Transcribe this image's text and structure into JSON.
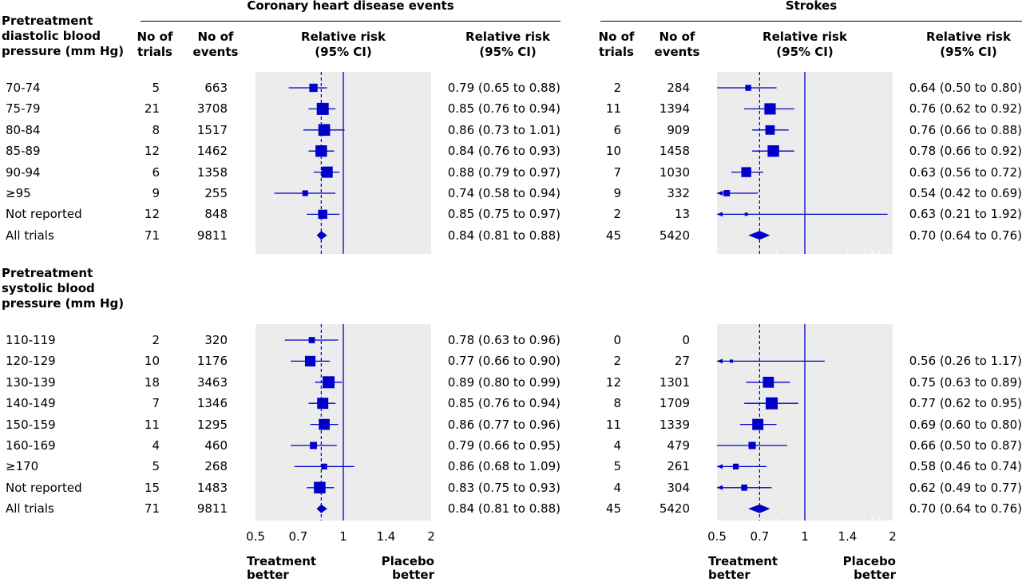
{
  "chart_data": {
    "type": "forest",
    "panel_titles": [
      "Coronary heart disease events",
      "Strokes"
    ],
    "column_headers": {
      "group": "Pretreatment diastolic blood pressure (mm Hg)",
      "n_trials": "No of trials",
      "n_events": "No of events",
      "plot": "Relative risk (95% CI)",
      "rr_text": "Relative risk (95% CI)"
    },
    "x_axis": {
      "scale": "log",
      "range": [
        0.5,
        2
      ],
      "ticks": [
        0.5,
        0.7,
        1,
        1.4,
        2
      ],
      "tick_labels": [
        "0.5",
        "0.7",
        "1",
        "1.4",
        "2"
      ],
      "left_label": "Treatment better",
      "right_label": "Placebo better"
    },
    "pooled_estimates": {
      "chd": 0.84,
      "stroke": 0.7
    },
    "sections": [
      {
        "title": "Pretreatment diastolic blood pressure (mm Hg)",
        "rows": [
          {
            "label": "70-74",
            "chd": {
              "trials": "5",
              "events": "663",
              "rr": 0.79,
              "lo": 0.65,
              "hi": 0.88,
              "text": "0.79 (0.65 to 0.88)"
            },
            "stroke": {
              "trials": "2",
              "events": "284",
              "rr": 0.64,
              "lo": 0.5,
              "hi": 0.8,
              "text": "0.64 (0.50 to 0.80)"
            }
          },
          {
            "label": "75-79",
            "chd": {
              "trials": "21",
              "events": "3708",
              "rr": 0.85,
              "lo": 0.76,
              "hi": 0.94,
              "text": "0.85 (0.76 to 0.94)"
            },
            "stroke": {
              "trials": "11",
              "events": "1394",
              "rr": 0.76,
              "lo": 0.62,
              "hi": 0.92,
              "text": "0.76 (0.62 to 0.92)"
            }
          },
          {
            "label": "80-84",
            "chd": {
              "trials": "8",
              "events": "1517",
              "rr": 0.86,
              "lo": 0.73,
              "hi": 1.01,
              "text": "0.86 (0.73 to 1.01)"
            },
            "stroke": {
              "trials": "6",
              "events": "909",
              "rr": 0.76,
              "lo": 0.66,
              "hi": 0.88,
              "text": "0.76 (0.66 to 0.88)"
            }
          },
          {
            "label": "85-89",
            "chd": {
              "trials": "12",
              "events": "1462",
              "rr": 0.84,
              "lo": 0.76,
              "hi": 0.93,
              "text": "0.84 (0.76 to 0.93)"
            },
            "stroke": {
              "trials": "10",
              "events": "1458",
              "rr": 0.78,
              "lo": 0.66,
              "hi": 0.92,
              "text": "0.78 (0.66 to 0.92)"
            }
          },
          {
            "label": "90-94",
            "chd": {
              "trials": "6",
              "events": "1358",
              "rr": 0.88,
              "lo": 0.79,
              "hi": 0.97,
              "text": "0.88 (0.79 to 0.97)"
            },
            "stroke": {
              "trials": "7",
              "events": "1030",
              "rr": 0.63,
              "lo": 0.56,
              "hi": 0.72,
              "text": "0.63 (0.56 to 0.72)"
            }
          },
          {
            "label": "≥95",
            "chd": {
              "trials": "9",
              "events": "255",
              "rr": 0.74,
              "lo": 0.58,
              "hi": 0.94,
              "text": "0.74 (0.58 to 0.94)"
            },
            "stroke": {
              "trials": "9",
              "events": "332",
              "rr": 0.54,
              "lo": 0.42,
              "hi": 0.69,
              "text": "0.54 (0.42 to 0.69)"
            }
          },
          {
            "label": "Not reported",
            "chd": {
              "trials": "12",
              "events": "848",
              "rr": 0.85,
              "lo": 0.75,
              "hi": 0.97,
              "text": "0.85 (0.75 to 0.97)"
            },
            "stroke": {
              "trials": "2",
              "events": "13",
              "rr": 0.63,
              "lo": 0.21,
              "hi": 1.92,
              "text": "0.63 (0.21 to 1.92)"
            }
          },
          {
            "label": "All trials",
            "chd": {
              "trials": "71",
              "events": "9811",
              "rr": 0.84,
              "lo": 0.81,
              "hi": 0.88,
              "text": "0.84 (0.81 to 0.88)",
              "pooled": true
            },
            "stroke": {
              "trials": "45",
              "events": "5420",
              "rr": 0.7,
              "lo": 0.64,
              "hi": 0.76,
              "text": "0.70 (0.64 to 0.76)",
              "pooled": true
            }
          }
        ]
      },
      {
        "title": "Pretreatment systolic blood pressure (mm Hg)",
        "rows": [
          {
            "label": "110-119",
            "chd": {
              "trials": "2",
              "events": "320",
              "rr": 0.78,
              "lo": 0.63,
              "hi": 0.96,
              "text": "0.78 (0.63 to 0.96)"
            },
            "stroke": {
              "trials": "0",
              "events": "0",
              "rr": null,
              "lo": null,
              "hi": null,
              "text": ""
            }
          },
          {
            "label": "120-129",
            "chd": {
              "trials": "10",
              "events": "1176",
              "rr": 0.77,
              "lo": 0.66,
              "hi": 0.9,
              "text": "0.77 (0.66 to 0.90)"
            },
            "stroke": {
              "trials": "2",
              "events": "27",
              "rr": 0.56,
              "lo": 0.26,
              "hi": 1.17,
              "text": "0.56 (0.26 to 1.17)"
            }
          },
          {
            "label": "130-139",
            "chd": {
              "trials": "18",
              "events": "3463",
              "rr": 0.89,
              "lo": 0.8,
              "hi": 0.99,
              "text": "0.89 (0.80 to 0.99)"
            },
            "stroke": {
              "trials": "12",
              "events": "1301",
              "rr": 0.75,
              "lo": 0.63,
              "hi": 0.89,
              "text": "0.75 (0.63 to 0.89)"
            }
          },
          {
            "label": "140-149",
            "chd": {
              "trials": "7",
              "events": "1346",
              "rr": 0.85,
              "lo": 0.76,
              "hi": 0.94,
              "text": "0.85 (0.76 to 0.94)"
            },
            "stroke": {
              "trials": "8",
              "events": "1709",
              "rr": 0.77,
              "lo": 0.62,
              "hi": 0.95,
              "text": "0.77 (0.62 to 0.95)"
            }
          },
          {
            "label": "150-159",
            "chd": {
              "trials": "11",
              "events": "1295",
              "rr": 0.86,
              "lo": 0.77,
              "hi": 0.96,
              "text": "0.86 (0.77 to 0.96)"
            },
            "stroke": {
              "trials": "11",
              "events": "1339",
              "rr": 0.69,
              "lo": 0.6,
              "hi": 0.8,
              "text": "0.69 (0.60 to 0.80)"
            }
          },
          {
            "label": "160-169",
            "chd": {
              "trials": "4",
              "events": "460",
              "rr": 0.79,
              "lo": 0.66,
              "hi": 0.95,
              "text": "0.79 (0.66 to 0.95)"
            },
            "stroke": {
              "trials": "4",
              "events": "479",
              "rr": 0.66,
              "lo": 0.5,
              "hi": 0.87,
              "text": "0.66 (0.50 to 0.87)"
            }
          },
          {
            "label": "≥170",
            "chd": {
              "trials": "5",
              "events": "268",
              "rr": 0.86,
              "lo": 0.68,
              "hi": 1.09,
              "text": "0.86 (0.68 to 1.09)"
            },
            "stroke": {
              "trials": "5",
              "events": "261",
              "rr": 0.58,
              "lo": 0.46,
              "hi": 0.74,
              "text": "0.58 (0.46 to 0.74)"
            }
          },
          {
            "label": "Not reported",
            "chd": {
              "trials": "15",
              "events": "1483",
              "rr": 0.83,
              "lo": 0.75,
              "hi": 0.93,
              "text": "0.83 (0.75 to 0.93)"
            },
            "stroke": {
              "trials": "4",
              "events": "304",
              "rr": 0.62,
              "lo": 0.49,
              "hi": 0.77,
              "text": "0.62 (0.49 to 0.77)"
            }
          },
          {
            "label": "All trials",
            "chd": {
              "trials": "71",
              "events": "9811",
              "rr": 0.84,
              "lo": 0.81,
              "hi": 0.88,
              "text": "0.84 (0.81 to 0.88)",
              "pooled": true
            },
            "stroke": {
              "trials": "45",
              "events": "5420",
              "rr": 0.7,
              "lo": 0.64,
              "hi": 0.76,
              "text": "0.70 (0.64 to 0.76)",
              "pooled": true
            }
          }
        ]
      }
    ],
    "colors": {
      "marker": "#0000c8",
      "panel_bg": "#ececec"
    }
  }
}
